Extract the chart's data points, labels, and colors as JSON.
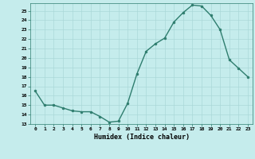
{
  "x": [
    0,
    1,
    2,
    3,
    4,
    5,
    6,
    7,
    8,
    9,
    10,
    11,
    12,
    13,
    14,
    15,
    16,
    17,
    18,
    19,
    20,
    21,
    22,
    23
  ],
  "y": [
    16.5,
    15.0,
    15.0,
    14.7,
    14.4,
    14.3,
    14.3,
    13.8,
    13.2,
    13.3,
    15.2,
    18.3,
    20.7,
    21.5,
    22.1,
    23.8,
    24.8,
    25.6,
    25.5,
    24.5,
    23.0,
    19.8,
    18.9,
    18.0
  ],
  "xlabel": "Humidex (Indice chaleur)",
  "line_color": "#2e7d6e",
  "marker_color": "#2e7d6e",
  "bg_color": "#c5ecec",
  "grid_color": "#aad8d8",
  "ylim": [
    13,
    25.8
  ],
  "xlim": [
    -0.5,
    23.5
  ],
  "yticks": [
    13,
    14,
    15,
    16,
    17,
    18,
    19,
    20,
    21,
    22,
    23,
    24,
    25
  ],
  "xticks": [
    0,
    1,
    2,
    3,
    4,
    5,
    6,
    7,
    8,
    9,
    10,
    11,
    12,
    13,
    14,
    15,
    16,
    17,
    18,
    19,
    20,
    21,
    22,
    23
  ]
}
